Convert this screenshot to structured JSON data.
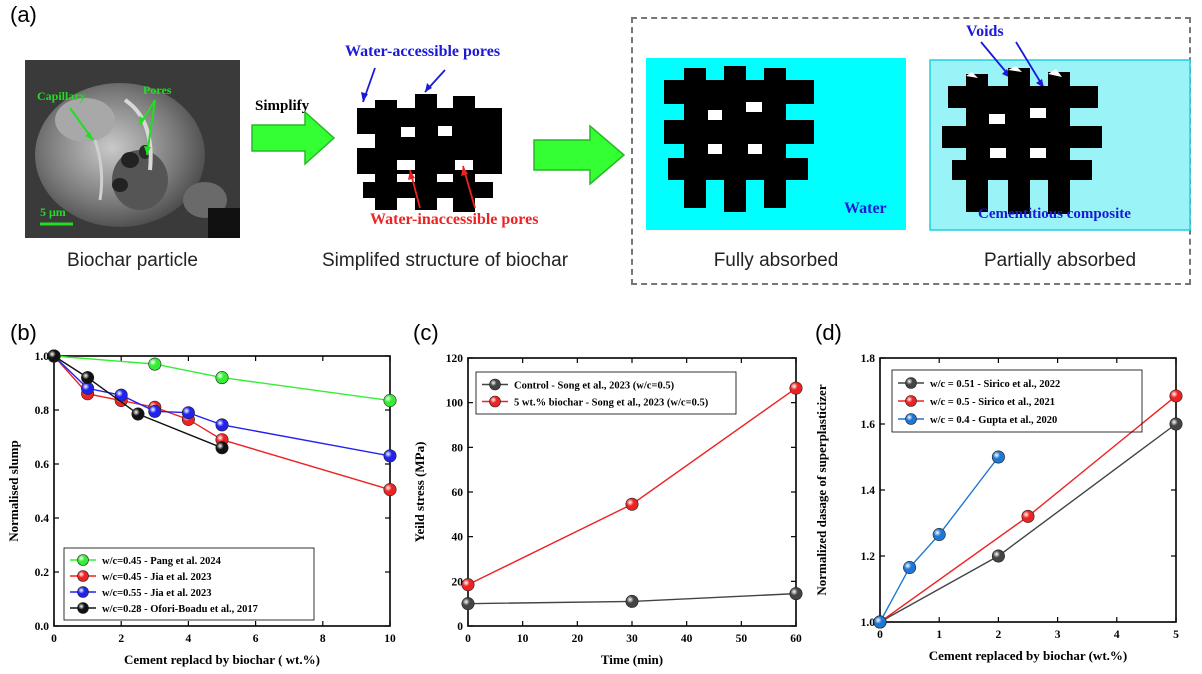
{
  "panel_a": {
    "label": "(a)",
    "sem": {
      "label_capillary": "Capillary",
      "label_pores": "Pores",
      "scale": "5 μm",
      "caption": "Biochar particle"
    },
    "simplify_label": "Simplify",
    "structure": {
      "top_label": "Water-accessible pores",
      "bottom_label": "Water-inaccessible pores",
      "caption": "Simplifed structure of biochar"
    },
    "fully": {
      "medium": "Water",
      "caption": "Fully absorbed"
    },
    "partial": {
      "top_label": "Voids",
      "medium": "Cementitious composite",
      "caption": "Partially absorbed"
    },
    "colors": {
      "arrow": "#33ff33",
      "water": "#00ffff",
      "cement": "#99f3f7",
      "text_blue": "#1a1ad8",
      "text_red": "#ee2222"
    }
  },
  "chart_data": [
    {
      "label": "(b)",
      "type": "line",
      "xlabel": "Cement replacd by biochar ( wt.%)",
      "ylabel": "Normalised slump",
      "xlim": [
        0,
        10
      ],
      "ylim": [
        0,
        1.0
      ],
      "xticks": [
        "0",
        "2",
        "4",
        "6",
        "8",
        "10"
      ],
      "yticks": [
        "0.0",
        "0.2",
        "0.4",
        "0.6",
        "0.8",
        "1.0"
      ],
      "legend_position": "bottom-left",
      "series": [
        {
          "name": "w/c=0.45   - Pang et al. 2024",
          "color": "#33ee33",
          "x": [
            0,
            3,
            5,
            10
          ],
          "y": [
            1.0,
            0.97,
            0.92,
            0.835
          ]
        },
        {
          "name": "w/c=0.45 - Jia et al. 2023",
          "color": "#ee2222",
          "x": [
            0,
            1,
            2,
            3,
            4,
            5,
            10
          ],
          "y": [
            1.0,
            0.86,
            0.835,
            0.81,
            0.765,
            0.69,
            0.505
          ]
        },
        {
          "name": "w/c=0.55 - Jia et al. 2023",
          "color": "#2222ee",
          "x": [
            0,
            1,
            2,
            3,
            4,
            5,
            10
          ],
          "y": [
            1.0,
            0.88,
            0.855,
            0.795,
            0.79,
            0.745,
            0.63
          ]
        },
        {
          "name": "w/c=0.28 - Ofori-Boadu et al., 2017",
          "color": "#111111",
          "x": [
            0,
            1,
            2.5,
            5
          ],
          "y": [
            1.0,
            0.92,
            0.785,
            0.66
          ]
        }
      ]
    },
    {
      "label": "(c)",
      "type": "line",
      "xlabel": "Time (min)",
      "ylabel": "Yeild stress (MPa)",
      "xlim": [
        0,
        60
      ],
      "ylim": [
        0,
        120
      ],
      "xticks": [
        "0",
        "10",
        "20",
        "30",
        "40",
        "50",
        "60"
      ],
      "yticks": [
        "0",
        "20",
        "40",
        "60",
        "80",
        "100",
        "120"
      ],
      "legend_position": "top-left",
      "series": [
        {
          "name": "Control - Song et al., 2023 (w/c=0.5)",
          "color": "#444444",
          "x": [
            0,
            30,
            60
          ],
          "y": [
            10,
            11,
            14.5
          ]
        },
        {
          "name": "5 wt.% biochar - Song et al., 2023 (w/c=0.5)",
          "color": "#ee2222",
          "x": [
            0,
            30,
            60
          ],
          "y": [
            18.5,
            54.5,
            106.5
          ]
        }
      ]
    },
    {
      "label": "(d)",
      "type": "line",
      "xlabel": "Cement replaced by biochar (wt.%)",
      "ylabel": "Normalized dasage of superplasticizer",
      "xlim": [
        0,
        5
      ],
      "ylim": [
        1.0,
        1.8
      ],
      "xticks": [
        "0",
        "1",
        "2",
        "3",
        "4",
        "5"
      ],
      "yticks": [
        "1.0",
        "1.2",
        "1.4",
        "1.6",
        "1.8"
      ],
      "legend_position": "top-left",
      "series": [
        {
          "name": "w/c = 0.51 - Sirico et al., 2022",
          "color": "#444444",
          "x": [
            0,
            2,
            5
          ],
          "y": [
            1.0,
            1.2,
            1.6
          ]
        },
        {
          "name": "w/c = 0.5 - Sirico et al., 2021",
          "color": "#ee2222",
          "x": [
            0,
            2.5,
            5
          ],
          "y": [
            1.0,
            1.32,
            1.685
          ]
        },
        {
          "name": "w/c = 0.4 - Gupta et al., 2020",
          "color": "#1f77d4",
          "x": [
            0,
            0.5,
            1,
            2
          ],
          "y": [
            1.0,
            1.165,
            1.265,
            1.5
          ]
        }
      ]
    }
  ]
}
